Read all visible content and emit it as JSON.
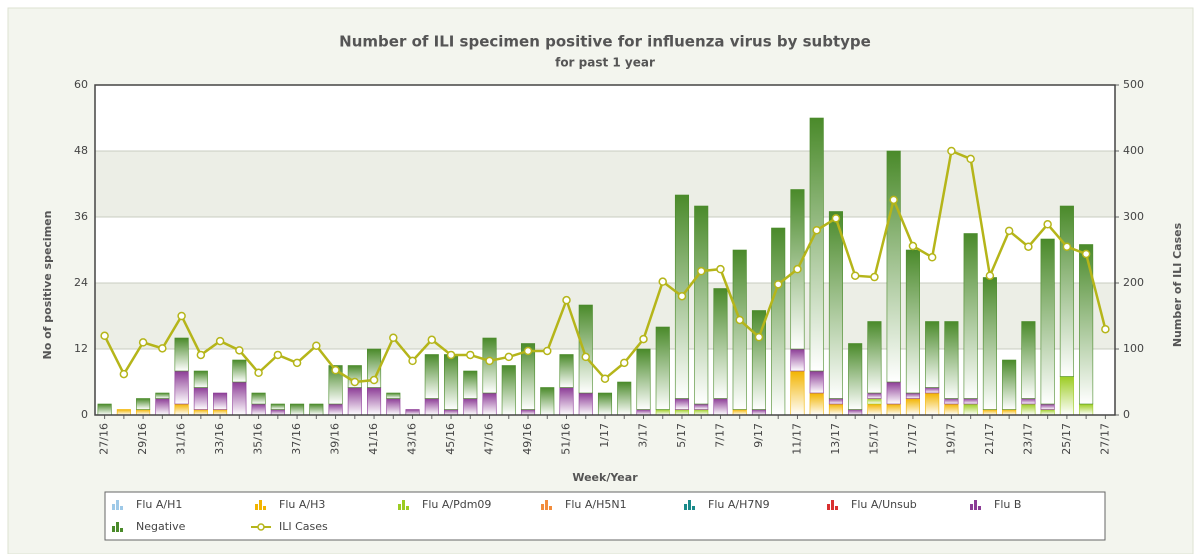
{
  "chart_data": {
    "type": "bar",
    "stacked": true,
    "title": "Number of ILI specimen positive for influenza virus by subtype",
    "subtitle": "for past 1 year",
    "x_label": "Week/Year",
    "y_label": "No of positive specimen",
    "y2_label": "Number of ILI Cases",
    "categories": [
      "27/16",
      null,
      "29/16",
      null,
      "31/16",
      null,
      "33/16",
      null,
      "35/16",
      null,
      "37/16",
      null,
      "39/16",
      null,
      "41/16",
      null,
      "43/16",
      null,
      "45/16",
      null,
      "47/16",
      null,
      "49/16",
      null,
      "51/16",
      null,
      "1/17",
      null,
      "3/17",
      null,
      "5/17",
      null,
      "7/17",
      null,
      "9/17",
      null,
      "11/17",
      null,
      "13/17",
      null,
      "15/17",
      null,
      "17/17",
      null,
      "19/17",
      null,
      "21/17",
      null,
      "23/17",
      null,
      "25/17",
      null,
      "27/17"
    ],
    "ylim": [
      0,
      60
    ],
    "yticks": [
      0,
      12,
      24,
      36,
      48,
      60
    ],
    "y2lim": [
      0,
      500
    ],
    "y2ticks": [
      0,
      100,
      200,
      300,
      400,
      500
    ],
    "grid": true,
    "series": [
      {
        "name": "Flu A/H1",
        "color": "#9ec9e8",
        "values": [
          0,
          0,
          0,
          0,
          0,
          0,
          0,
          0,
          0,
          0,
          0,
          0,
          0,
          0,
          0,
          0,
          0,
          0,
          0,
          0,
          0,
          0,
          0,
          0,
          0,
          0,
          0,
          0,
          0,
          0,
          0,
          0,
          0,
          0,
          0,
          0,
          0,
          0,
          0,
          0,
          0,
          0,
          0,
          0,
          0,
          0,
          0,
          0,
          0,
          0,
          0,
          0,
          0
        ]
      },
      {
        "name": "Flu A/H3",
        "color": "#f2b400",
        "values": [
          0,
          1,
          1,
          0,
          2,
          1,
          1,
          0,
          0,
          0,
          0,
          0,
          0,
          0,
          0,
          0,
          0,
          0,
          0,
          0,
          0,
          0,
          0,
          0,
          0,
          0,
          0,
          0,
          0,
          0,
          0,
          0,
          0,
          1,
          0,
          0,
          8,
          4,
          2,
          0,
          2,
          2,
          3,
          4,
          2,
          0,
          1,
          1,
          0,
          0,
          0,
          0,
          0
        ]
      },
      {
        "name": "Flu A/Pdm09",
        "color": "#9ccc22",
        "values": [
          0,
          0,
          0,
          0,
          0,
          0,
          0,
          0,
          0,
          0,
          0,
          0,
          0,
          0,
          0,
          0,
          0,
          0,
          0,
          0,
          0,
          0,
          0,
          0,
          0,
          0,
          0,
          0,
          0,
          1,
          1,
          1,
          0,
          0,
          0,
          0,
          0,
          0,
          0,
          0,
          1,
          0,
          0,
          0,
          0,
          2,
          0,
          0,
          2,
          1,
          7,
          2,
          0
        ]
      },
      {
        "name": "Flu A/H5N1",
        "color": "#f28c3c",
        "values": [
          0,
          0,
          0,
          0,
          0,
          0,
          0,
          0,
          0,
          0,
          0,
          0,
          0,
          0,
          0,
          0,
          0,
          0,
          0,
          0,
          0,
          0,
          0,
          0,
          0,
          0,
          0,
          0,
          0,
          0,
          0,
          0,
          0,
          0,
          0,
          0,
          0,
          0,
          0,
          0,
          0,
          0,
          0,
          0,
          0,
          0,
          0,
          0,
          0,
          0,
          0,
          0,
          0
        ]
      },
      {
        "name": "Flu A/H7N9",
        "color": "#1a8a8a",
        "values": [
          0,
          0,
          0,
          0,
          0,
          0,
          0,
          0,
          0,
          0,
          0,
          0,
          0,
          0,
          0,
          0,
          0,
          0,
          0,
          0,
          0,
          0,
          0,
          0,
          0,
          0,
          0,
          0,
          0,
          0,
          0,
          0,
          0,
          0,
          0,
          0,
          0,
          0,
          0,
          0,
          0,
          0,
          0,
          0,
          0,
          0,
          0,
          0,
          0,
          0,
          0,
          0,
          0
        ]
      },
      {
        "name": "Flu A/Unsub",
        "color": "#d93030",
        "values": [
          0,
          0,
          0,
          0,
          0,
          0,
          0,
          0,
          0,
          0,
          0,
          0,
          0,
          0,
          0,
          0,
          0,
          0,
          0,
          0,
          0,
          0,
          0,
          0,
          0,
          0,
          0,
          0,
          0,
          0,
          0,
          0,
          0,
          0,
          0,
          0,
          0,
          0,
          0,
          0,
          0,
          0,
          0,
          0,
          0,
          0,
          0,
          0,
          0,
          0,
          0,
          0,
          0
        ]
      },
      {
        "name": "Flu B",
        "color": "#8c3c96",
        "values": [
          0,
          0,
          0,
          3,
          6,
          4,
          3,
          6,
          2,
          1,
          0,
          0,
          2,
          5,
          5,
          3,
          1,
          3,
          1,
          3,
          4,
          0,
          1,
          0,
          5,
          4,
          0,
          0,
          1,
          0,
          2,
          1,
          3,
          0,
          1,
          0,
          4,
          4,
          1,
          1,
          1,
          4,
          1,
          1,
          1,
          1,
          0,
          0,
          1,
          1,
          0,
          0,
          0
        ]
      },
      {
        "name": "Negative",
        "color": "#4a8a2a",
        "values": [
          2,
          0,
          2,
          1,
          6,
          3,
          0,
          4,
          2,
          1,
          2,
          2,
          7,
          4,
          7,
          1,
          0,
          8,
          10,
          5,
          10,
          9,
          12,
          5,
          6,
          16,
          4,
          6,
          11,
          15,
          37,
          36,
          20,
          29,
          18,
          34,
          29,
          46,
          34,
          12,
          13,
          42,
          26,
          12,
          14,
          30,
          24,
          9,
          14,
          30,
          31,
          29,
          0
        ]
      },
      {
        "name": "ILI Cases",
        "type": "line",
        "axis": "y2",
        "color": "#b5b51a",
        "values": [
          120,
          62,
          110,
          101,
          150,
          91,
          112,
          98,
          64,
          91,
          79,
          105,
          68,
          50,
          53,
          117,
          82,
          114,
          91,
          91,
          82,
          88,
          97,
          97,
          174,
          88,
          55,
          79,
          115,
          202,
          180,
          218,
          221,
          144,
          118,
          198,
          221,
          280,
          298,
          211,
          209,
          326,
          256,
          239,
          400,
          388,
          211,
          279,
          255,
          289,
          255,
          244,
          130
        ]
      }
    ]
  }
}
